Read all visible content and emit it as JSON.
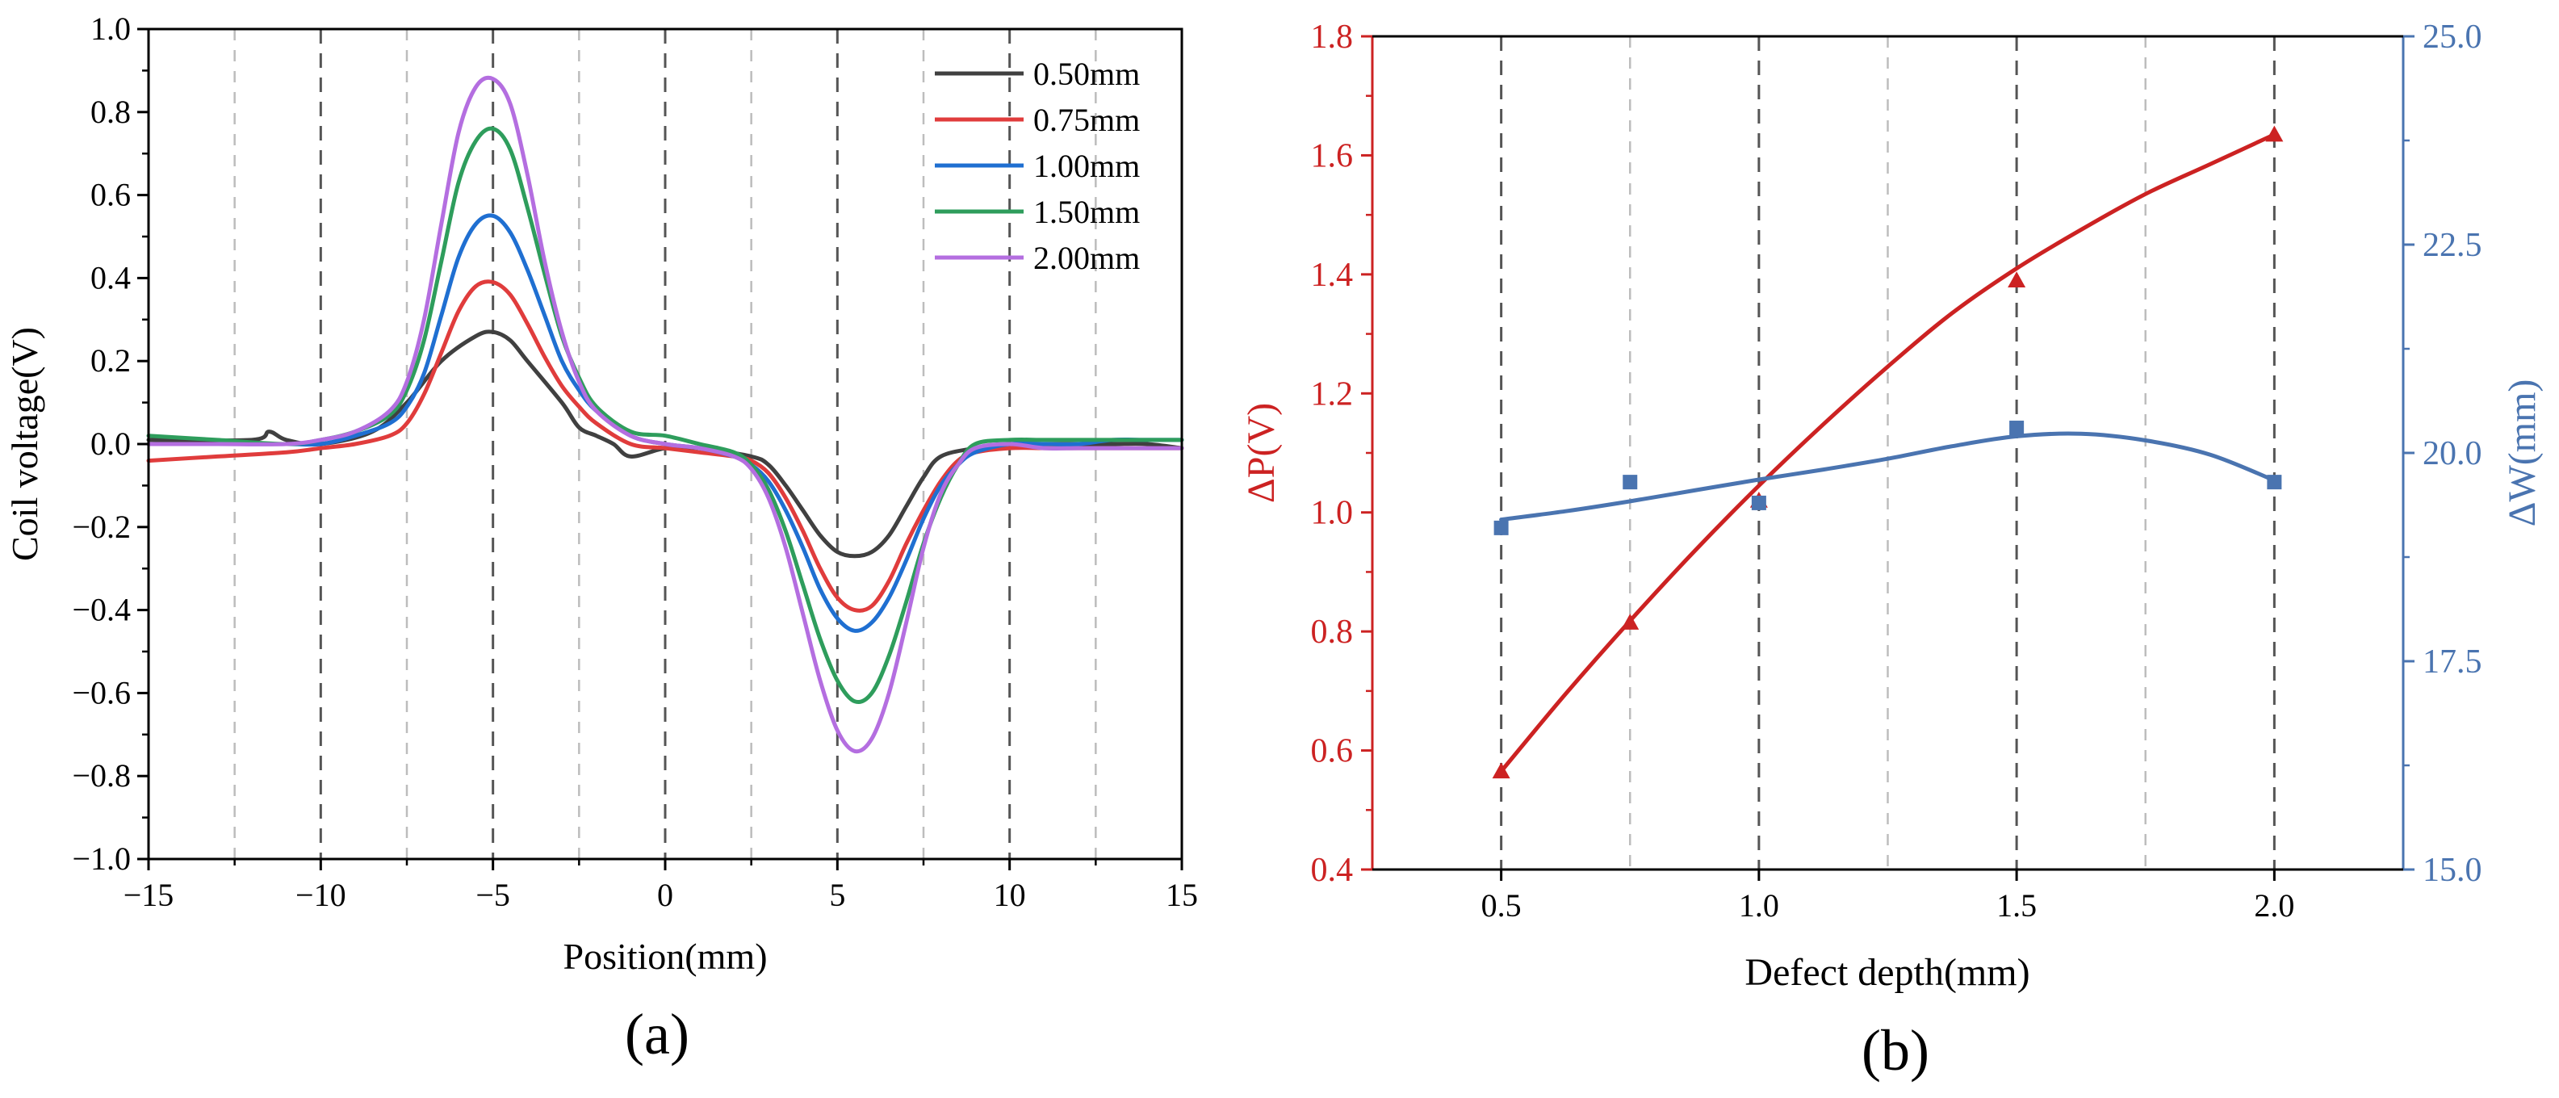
{
  "chart_data": [
    {
      "panel_label": "(a)",
      "type": "line",
      "xlabel": "Position(mm)",
      "ylabel": "Coil voltage(V)",
      "xlim": [
        -15,
        15
      ],
      "ylim": [
        -1.0,
        1.0
      ],
      "x_ticks": [
        "−15",
        "−10",
        "−5",
        "0",
        "5",
        "10",
        "15"
      ],
      "y_ticks": [
        "−1.0",
        "−0.8",
        "−0.6",
        "−0.4",
        "−0.2",
        "0.0",
        "0.2",
        "0.4",
        "0.6",
        "0.8",
        "1.0"
      ],
      "grid": "dashed vertical lines every 2.5 mm",
      "legend_position": "top-right",
      "series": [
        {
          "name": "0.50mm",
          "color": "#404040",
          "x": [
            -15,
            -12,
            -11.5,
            -11,
            -10,
            -8.5,
            -7.5,
            -6.5,
            -5.5,
            -5,
            -4.5,
            -4,
            -3,
            -2.5,
            -2,
            -1.5,
            -1,
            0,
            1,
            2.5,
            3,
            3.5,
            4,
            4.5,
            5,
            5.5,
            6,
            6.5,
            7,
            7.5,
            8,
            9,
            10,
            11,
            12,
            13,
            14,
            15
          ],
          "y": [
            0.01,
            0.01,
            0.03,
            0.01,
            0.0,
            0.03,
            0.1,
            0.2,
            0.26,
            0.27,
            0.25,
            0.2,
            0.1,
            0.04,
            0.02,
            0.0,
            -0.03,
            -0.01,
            -0.01,
            -0.03,
            -0.05,
            -0.1,
            -0.16,
            -0.22,
            -0.26,
            -0.27,
            -0.26,
            -0.22,
            -0.15,
            -0.08,
            -0.03,
            -0.01,
            0.0,
            0.0,
            0.0,
            0.0,
            0.0,
            -0.01
          ]
        },
        {
          "name": "0.75mm",
          "color": "#e03c3c",
          "x": [
            -15,
            -13,
            -11,
            -10,
            -9,
            -8,
            -7.5,
            -7,
            -6.5,
            -6,
            -5.5,
            -5,
            -4.5,
            -4,
            -3.5,
            -3,
            -2.5,
            -2,
            -1,
            0,
            1,
            2,
            2.5,
            3,
            3.5,
            4,
            4.5,
            5,
            5.5,
            6,
            6.5,
            7,
            7.5,
            8,
            8.5,
            9,
            10,
            11,
            12,
            13,
            14,
            15
          ],
          "y": [
            -0.04,
            -0.03,
            -0.02,
            -0.01,
            0.0,
            0.02,
            0.05,
            0.12,
            0.22,
            0.32,
            0.38,
            0.39,
            0.36,
            0.29,
            0.21,
            0.14,
            0.09,
            0.05,
            0.0,
            -0.01,
            -0.02,
            -0.03,
            -0.04,
            -0.07,
            -0.13,
            -0.21,
            -0.3,
            -0.37,
            -0.4,
            -0.39,
            -0.33,
            -0.24,
            -0.16,
            -0.09,
            -0.04,
            -0.02,
            -0.01,
            -0.01,
            -0.01,
            -0.01,
            -0.01,
            -0.01
          ]
        },
        {
          "name": "1.00mm",
          "color": "#1f6fd1",
          "x": [
            -15,
            -13,
            -11,
            -10,
            -9,
            -8,
            -7.5,
            -7,
            -6.5,
            -6,
            -5.5,
            -5,
            -4.5,
            -4,
            -3.5,
            -3,
            -2.5,
            -2,
            -1,
            0,
            1,
            2,
            2.5,
            3,
            3.5,
            4,
            4.5,
            5,
            5.5,
            6,
            6.5,
            7,
            7.5,
            8,
            8.5,
            9,
            10,
            11,
            12,
            13,
            14,
            15
          ],
          "y": [
            0.0,
            0.0,
            0.0,
            0.0,
            0.02,
            0.05,
            0.09,
            0.17,
            0.31,
            0.45,
            0.53,
            0.55,
            0.51,
            0.42,
            0.31,
            0.2,
            0.13,
            0.08,
            0.02,
            0.0,
            -0.01,
            -0.03,
            -0.05,
            -0.09,
            -0.16,
            -0.25,
            -0.35,
            -0.42,
            -0.45,
            -0.43,
            -0.37,
            -0.28,
            -0.18,
            -0.1,
            -0.05,
            -0.02,
            0.0,
            0.0,
            0.0,
            0.01,
            0.01,
            0.01
          ]
        },
        {
          "name": "1.50mm",
          "color": "#2e9d5c",
          "x": [
            -15,
            -13,
            -11,
            -10,
            -9,
            -8,
            -7.5,
            -7,
            -6.5,
            -6,
            -5.5,
            -5,
            -4.5,
            -4,
            -3.5,
            -3,
            -2.5,
            -2,
            -1,
            0,
            1,
            2,
            2.5,
            3,
            3.5,
            4,
            4.5,
            5,
            5.5,
            6,
            6.5,
            7,
            7.5,
            8,
            8.5,
            9,
            10,
            11,
            12,
            13,
            14,
            15
          ],
          "y": [
            0.02,
            0.01,
            0.0,
            0.01,
            0.03,
            0.07,
            0.13,
            0.25,
            0.44,
            0.63,
            0.73,
            0.76,
            0.71,
            0.57,
            0.41,
            0.26,
            0.16,
            0.09,
            0.03,
            0.02,
            0.0,
            -0.02,
            -0.05,
            -0.11,
            -0.21,
            -0.34,
            -0.47,
            -0.57,
            -0.62,
            -0.6,
            -0.51,
            -0.38,
            -0.24,
            -0.13,
            -0.05,
            0.0,
            0.01,
            0.01,
            0.01,
            0.01,
            0.01,
            0.01
          ]
        },
        {
          "name": "2.00mm",
          "color": "#b46ee0",
          "x": [
            -15,
            -13,
            -11,
            -10,
            -9,
            -8,
            -7.5,
            -7,
            -6.5,
            -6,
            -5.5,
            -5,
            -4.5,
            -4,
            -3.5,
            -3,
            -2.5,
            -2,
            -1,
            0,
            1,
            2,
            2.5,
            3,
            3.5,
            4,
            4.5,
            5,
            5.5,
            6,
            6.5,
            7,
            7.5,
            8,
            8.5,
            9,
            10,
            11,
            12,
            13,
            14,
            15
          ],
          "y": [
            0.0,
            0.0,
            0.0,
            0.01,
            0.03,
            0.08,
            0.15,
            0.3,
            0.53,
            0.75,
            0.86,
            0.88,
            0.82,
            0.65,
            0.44,
            0.27,
            0.15,
            0.08,
            0.02,
            0.0,
            -0.01,
            -0.03,
            -0.06,
            -0.13,
            -0.25,
            -0.41,
            -0.57,
            -0.69,
            -0.74,
            -0.71,
            -0.6,
            -0.43,
            -0.25,
            -0.12,
            -0.05,
            -0.01,
            0.0,
            -0.01,
            -0.01,
            -0.01,
            -0.01,
            -0.01
          ]
        }
      ]
    },
    {
      "panel_label": "(b)",
      "type": "line",
      "xlabel": "Defect depth(mm)",
      "ylabel": "ΔP(V)",
      "y2label": "ΔW(mm)",
      "xlim": [
        0.25,
        2.25
      ],
      "ylim": [
        0.4,
        1.8
      ],
      "y2lim": [
        15.0,
        25.0
      ],
      "x_ticks": [
        "0.5",
        "1.0",
        "1.5",
        "2.0"
      ],
      "y_ticks": [
        "0.4",
        "0.6",
        "0.8",
        "1.0",
        "1.2",
        "1.4",
        "1.6",
        "1.8"
      ],
      "y2_ticks": [
        "15.0",
        "17.5",
        "20.0",
        "22.5",
        "25.0"
      ],
      "grid": "dashed vertical lines every 0.25 mm",
      "left_axis_color": "#cc2222",
      "right_axis_color": "#4a74b0",
      "series": [
        {
          "axis": "left",
          "marker": "triangle",
          "color": "#cc2222",
          "x": [
            0.5,
            0.75,
            1.0,
            1.5,
            2.0
          ],
          "y": [
            0.565,
            0.815,
            1.02,
            1.39,
            1.635
          ],
          "fit_x": [
            0.5,
            0.625,
            0.75,
            0.875,
            1.0,
            1.125,
            1.25,
            1.375,
            1.5,
            1.625,
            1.75,
            1.875,
            2.0
          ],
          "fit_y": [
            0.565,
            0.695,
            0.818,
            0.935,
            1.045,
            1.148,
            1.245,
            1.335,
            1.41,
            1.475,
            1.535,
            1.585,
            1.635
          ]
        },
        {
          "axis": "right",
          "marker": "square",
          "color": "#4a74b0",
          "x": [
            0.5,
            0.75,
            1.0,
            1.5,
            2.0
          ],
          "y": [
            19.1,
            19.65,
            19.4,
            20.3,
            19.65
          ],
          "fit_x": [
            0.5,
            0.625,
            0.75,
            0.875,
            1.0,
            1.125,
            1.25,
            1.375,
            1.5,
            1.625,
            1.75,
            1.875,
            2.0
          ],
          "fit_y": [
            19.2,
            19.3,
            19.42,
            19.55,
            19.68,
            19.8,
            19.93,
            20.08,
            20.2,
            20.23,
            20.15,
            19.98,
            19.67
          ]
        }
      ]
    }
  ]
}
